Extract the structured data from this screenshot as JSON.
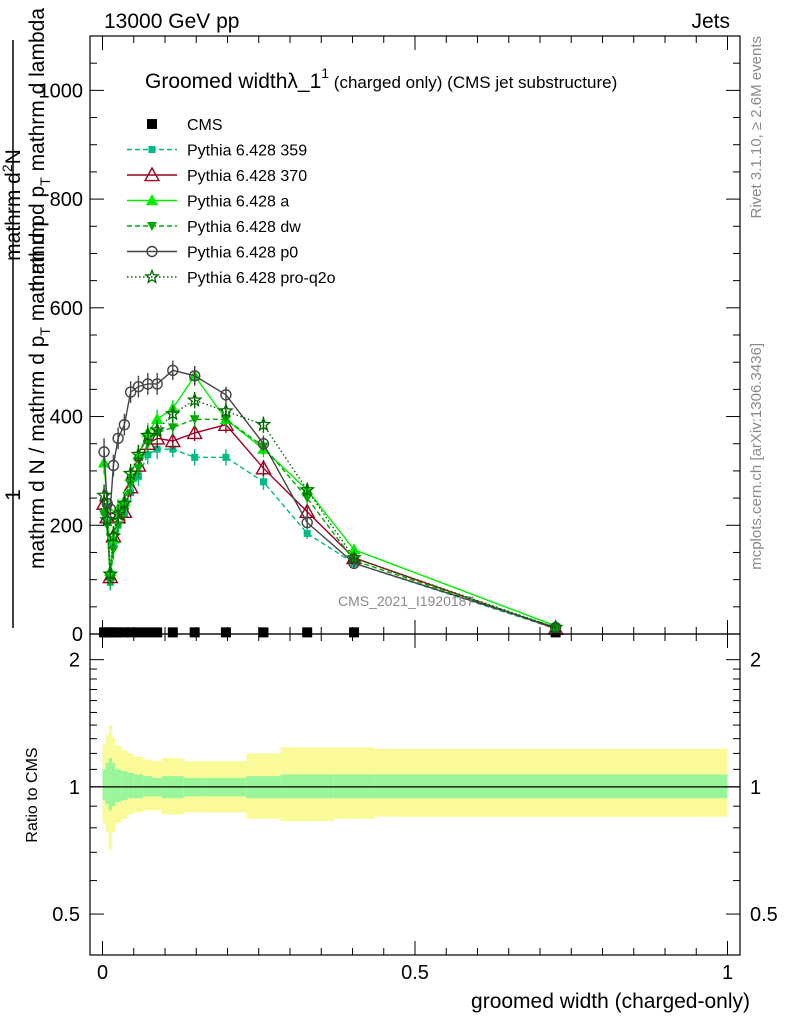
{
  "header": {
    "left": "13000 GeV pp",
    "right": "Jets"
  },
  "side_labels": {
    "rivet": "Rivet 3.1.10, ≥ 2.6M events",
    "mcplots": "mcplots.cern.ch [arXiv:1306.3436]"
  },
  "watermark": "CMS_2021_I1920187",
  "title": {
    "main": "Groomed width",
    "lambda": "λ_1",
    "lambda_sup": "1",
    "suffix": "(charged only) (CMS jet substructure)"
  },
  "ylabel_top": {
    "numerator": "1",
    "den_line1": "mathrm d N / mathrm d p",
    "den_sub1": "T",
    "den_line1b": "mathrm d p",
    "num_line": "mathrm d",
    "num_sup": "2",
    "num_rest": "N",
    "den_line2": "mathrm d p",
    "den_sub2": "T",
    "den_line2b": "mathrm d lambda"
  },
  "ylabel_ratio": "Ratio to CMS",
  "xlabel": "groomed width (charged-only)",
  "chart_data": {
    "type": "line",
    "x": [
      0.0025,
      0.0075,
      0.0125,
      0.0175,
      0.025,
      0.035,
      0.045,
      0.0575,
      0.0725,
      0.0875,
      0.1125,
      0.1475,
      0.1975,
      0.2575,
      0.3275,
      0.4025,
      0.725
    ],
    "x_ticks": [
      0,
      0.5,
      1
    ],
    "x_tick_labels": [
      "0",
      "0.5",
      "1"
    ],
    "xlim": [
      -0.02,
      1.02
    ],
    "ylim": [
      0,
      1100
    ],
    "y_ticks": [
      0,
      200,
      400,
      600,
      800,
      1000
    ],
    "y_tick_labels": [
      "0",
      "200",
      "400",
      "600",
      "800",
      "1000"
    ],
    "ratio_ylim": [
      0.4,
      2.3
    ],
    "ratio_ticks": [
      0.5,
      1,
      2
    ],
    "ratio_tick_labels": [
      "0.5",
      "1",
      "2"
    ],
    "series": [
      {
        "name": "CMS",
        "style": "data",
        "color": "#000000",
        "marker": "square",
        "values": [
          3,
          3,
          3,
          3,
          3,
          3,
          3,
          3,
          3,
          3,
          3,
          3,
          3,
          3,
          3,
          3,
          3
        ]
      },
      {
        "name": "Pythia 6.428 359",
        "style": "dashed",
        "color": "#00bb88",
        "marker": "square",
        "values": [
          225,
          205,
          95,
          165,
          200,
          220,
          260,
          290,
          330,
          340,
          340,
          325,
          325,
          280,
          185,
          130,
          10
        ],
        "errors": [
          20,
          20,
          15,
          18,
          18,
          18,
          18,
          18,
          18,
          18,
          15,
          15,
          15,
          15,
          10,
          8,
          3
        ]
      },
      {
        "name": "Pythia 6.428 370",
        "style": "solid",
        "color": "#990022",
        "marker": "triangle-open",
        "values": [
          240,
          215,
          105,
          180,
          215,
          225,
          270,
          310,
          350,
          360,
          355,
          370,
          385,
          305,
          225,
          140,
          10
        ],
        "errors": [
          20,
          20,
          15,
          18,
          18,
          18,
          18,
          18,
          18,
          18,
          15,
          15,
          15,
          15,
          10,
          8,
          3
        ]
      },
      {
        "name": "Pythia 6.428 a",
        "style": "solid",
        "color": "#00ee00",
        "marker": "triangle",
        "values": [
          315,
          235,
          115,
          175,
          230,
          245,
          290,
          330,
          370,
          395,
          415,
          475,
          395,
          340,
          265,
          155,
          15
        ],
        "errors": [
          22,
          20,
          15,
          18,
          18,
          18,
          18,
          18,
          18,
          18,
          15,
          15,
          15,
          15,
          10,
          8,
          3
        ]
      },
      {
        "name": "Pythia 6.428 dw",
        "style": "dashed",
        "color": "#00aa00",
        "marker": "triangle-down",
        "values": [
          220,
          200,
          100,
          155,
          200,
          230,
          275,
          305,
          350,
          370,
          380,
          395,
          395,
          345,
          250,
          135,
          12
        ],
        "errors": [
          20,
          20,
          15,
          18,
          18,
          18,
          18,
          18,
          18,
          18,
          15,
          15,
          15,
          15,
          10,
          8,
          3
        ]
      },
      {
        "name": "Pythia 6.428 p0",
        "style": "solid",
        "color": "#444444",
        "marker": "circle-open",
        "values": [
          335,
          240,
          230,
          310,
          360,
          385,
          445,
          455,
          460,
          460,
          485,
          475,
          440,
          350,
          205,
          130,
          12
        ],
        "errors": [
          25,
          22,
          20,
          20,
          20,
          20,
          20,
          20,
          20,
          20,
          18,
          18,
          15,
          15,
          10,
          8,
          3
        ]
      },
      {
        "name": "Pythia 6.428 pro-q2o",
        "style": "dotted",
        "color": "#006600",
        "marker": "star",
        "values": [
          255,
          210,
          110,
          180,
          220,
          240,
          295,
          330,
          365,
          375,
          405,
          430,
          410,
          385,
          265,
          140,
          12
        ],
        "errors": [
          20,
          20,
          15,
          18,
          18,
          18,
          18,
          18,
          18,
          18,
          15,
          15,
          15,
          15,
          10,
          8,
          3
        ]
      }
    ],
    "ratio_bands": {
      "bin_edges": [
        0,
        0.005,
        0.01,
        0.015,
        0.02,
        0.03,
        0.04,
        0.05,
        0.065,
        0.08,
        0.095,
        0.13,
        0.165,
        0.23,
        0.285,
        0.37,
        0.435,
        1.0
      ],
      "inner_up": [
        1.1,
        1.14,
        1.17,
        1.14,
        1.1,
        1.09,
        1.08,
        1.07,
        1.06,
        1.05,
        1.06,
        1.05,
        1.05,
        1.06,
        1.07,
        1.07,
        1.07
      ],
      "inner_down": [
        0.93,
        0.91,
        0.88,
        0.9,
        0.92,
        0.93,
        0.94,
        0.94,
        0.95,
        0.95,
        0.94,
        0.95,
        0.95,
        0.94,
        0.94,
        0.94,
        0.94
      ],
      "outer_up": [
        1.26,
        1.33,
        1.4,
        1.31,
        1.25,
        1.22,
        1.2,
        1.18,
        1.16,
        1.15,
        1.17,
        1.15,
        1.15,
        1.2,
        1.24,
        1.24,
        1.23
      ],
      "outer_down": [
        0.82,
        0.78,
        0.71,
        0.78,
        0.82,
        0.84,
        0.86,
        0.87,
        0.88,
        0.88,
        0.86,
        0.87,
        0.87,
        0.84,
        0.83,
        0.84,
        0.85
      ],
      "inner_color": "#99f599",
      "outer_color": "#fafa99"
    }
  }
}
